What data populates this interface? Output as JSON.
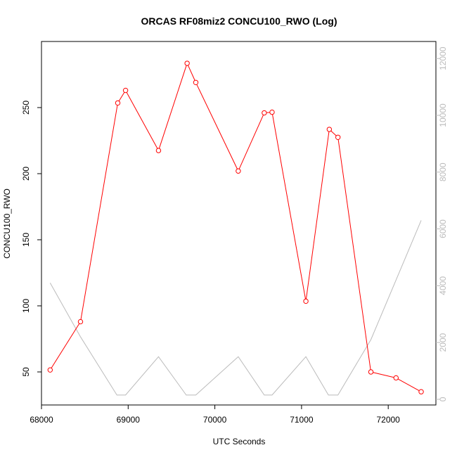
{
  "chart_data": {
    "type": "line",
    "title": "ORCAS RF08miz2 CONCU100_RWO (Log)",
    "xlabel": "UTC Seconds",
    "ylabel": "CONCU100_RWO",
    "xlim": [
      68000,
      72550
    ],
    "ylim": [
      25,
      300
    ],
    "y2lim": [
      -200,
      12600
    ],
    "x_ticks": [
      "68000",
      "69000",
      "70000",
      "71000",
      "72000"
    ],
    "y_ticks": [
      "50",
      "100",
      "150",
      "200",
      "250"
    ],
    "y2_ticks": [
      "0",
      "2000",
      "4000",
      "6000",
      "8000",
      "10000",
      "12000"
    ],
    "grid": false,
    "series": [
      {
        "axis": "left",
        "color": "#ff0000",
        "markers": true,
        "x": [
          68100,
          68450,
          68880,
          68970,
          69350,
          69680,
          69780,
          70270,
          70570,
          70660,
          71050,
          71320,
          71420,
          71800,
          72090,
          72380
        ],
        "y": [
          51.5,
          88,
          253.5,
          263,
          217.5,
          283.5,
          269,
          202,
          246,
          246.5,
          103.5,
          233.5,
          227.5,
          50,
          45.5,
          35
        ]
      },
      {
        "axis": "right",
        "color": "#bbbbbb",
        "markers": false,
        "x": [
          68100,
          68450,
          68870,
          68970,
          69350,
          69670,
          69780,
          70270,
          70570,
          70660,
          71050,
          71310,
          71420,
          71800,
          72380
        ],
        "y": [
          4100,
          2200,
          150,
          150,
          1500,
          150,
          150,
          1500,
          150,
          150,
          1500,
          150,
          150,
          2100,
          6300
        ]
      }
    ]
  }
}
